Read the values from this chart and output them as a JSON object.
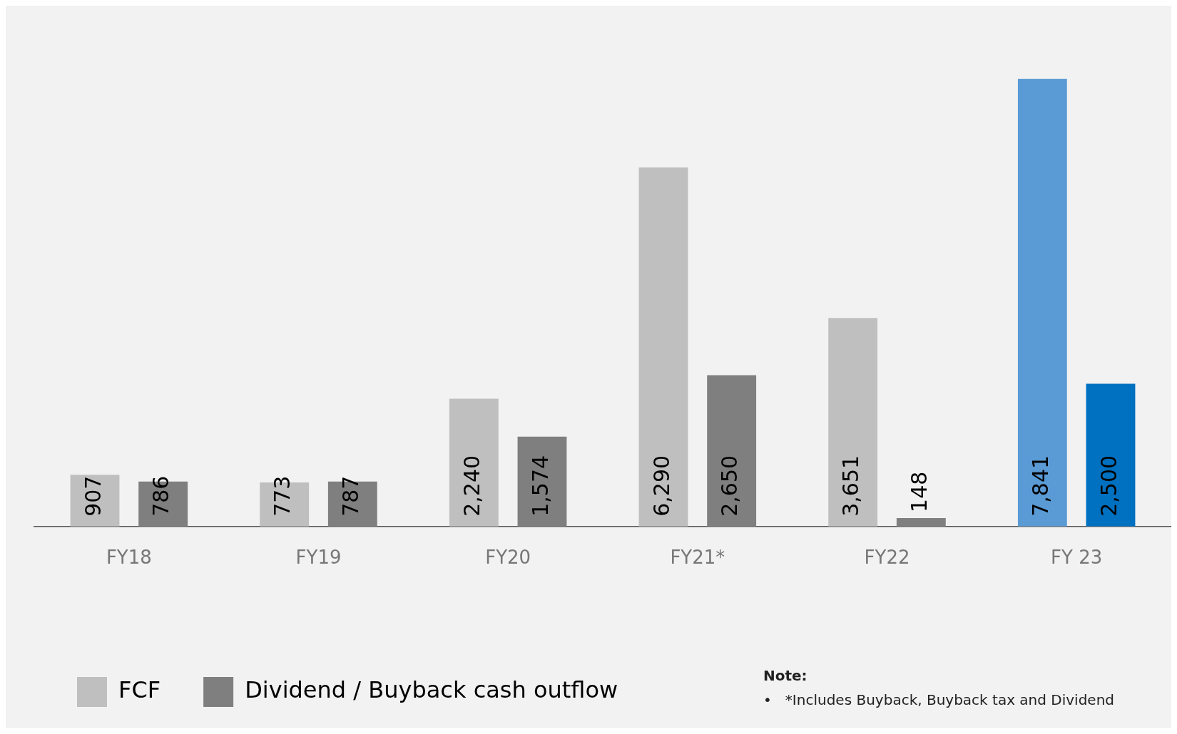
{
  "chart_data": {
    "type": "bar",
    "categories": [
      "FY18",
      "FY19",
      "FY20",
      "FY21*",
      "FY22",
      "FY 23"
    ],
    "series": [
      {
        "name": "FCF",
        "color": "#bfbfbf",
        "colors": [
          "#bfbfbf",
          "#bfbfbf",
          "#bfbfbf",
          "#bfbfbf",
          "#bfbfbf",
          "#5b9bd5"
        ],
        "values": [
          907,
          773,
          2240,
          6290,
          3651,
          7841
        ],
        "value_labels": [
          "907",
          "773",
          "2,240",
          "6,290",
          "3,651",
          "7,841"
        ]
      },
      {
        "name": "Dividend / Buyback cash outflow",
        "color": "#7f7f7f",
        "colors": [
          "#7f7f7f",
          "#7f7f7f",
          "#7f7f7f",
          "#7f7f7f",
          "#7f7f7f",
          "#0070c0"
        ],
        "values": [
          786,
          787,
          1574,
          2650,
          148,
          2500
        ],
        "value_labels": [
          "786",
          "787",
          "1,574",
          "2,650",
          "148",
          "2,500"
        ]
      }
    ],
    "legend": "bottom left",
    "grid": false,
    "tick_labels": "x",
    "annotations": [
      "Note:",
      "•   *Includes Buyback, Buyback tax and Dividend"
    ]
  }
}
